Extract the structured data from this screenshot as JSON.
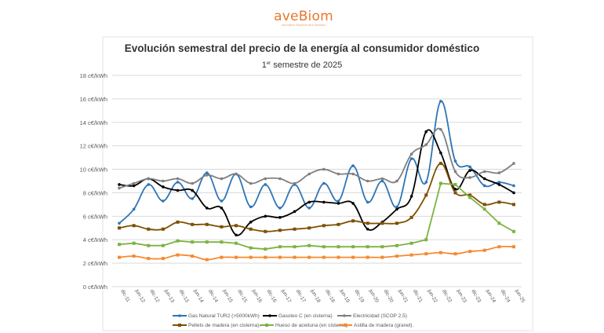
{
  "logo": {
    "brand": "aveBiom",
    "tagline": "Asociación Española de la Biomasa"
  },
  "chart_data": {
    "type": "line",
    "title": "Evolución semestral del precio de la energía al consumidor doméstico",
    "subtitle": {
      "prefix": "1",
      "sup": "er",
      "rest": " semestre de 2025"
    },
    "xlabel": "",
    "ylabel": "",
    "ylim": [
      0,
      18
    ],
    "yticks": [
      "0 c€/kWh",
      "2 c€/kWh",
      "4 c€/kWh",
      "6 c€/kWh",
      "8 c€/kWh",
      "10 c€/kWh",
      "12 c€/kWh",
      "14 c€/kWh",
      "16 c€/kWh",
      "18 c€/kWh"
    ],
    "grid": true,
    "legend_position": "bottom",
    "categories": [
      "dic-11",
      "jun-12",
      "dic-12",
      "jun-13",
      "dic-13",
      "jun-14",
      "dic-14",
      "jun-15",
      "dic-15",
      "jun-16",
      "dic-16",
      "jun-17",
      "dic-17",
      "jun-18",
      "dic-18",
      "jun-19",
      "dic-19",
      "jun-20",
      "dic-20",
      "jun-21",
      "dic-21",
      "jun-22",
      "dic-22",
      "jun-23",
      "dic-23",
      "jun-24",
      "dic-24",
      "jun-25"
    ],
    "series": [
      {
        "name": "Gas Natural TUR2 (>5000kWh)",
        "color": "#2e75b6",
        "marker": "diamond",
        "values": [
          5.4,
          6.6,
          8.7,
          7.3,
          8.9,
          7.5,
          9.7,
          7.3,
          9.6,
          6.8,
          8.7,
          6.7,
          8.7,
          6.7,
          8.8,
          7.3,
          10.3,
          7.2,
          9.0,
          6.8,
          10.9,
          8.9,
          15.8,
          10.7,
          10.2,
          8.6,
          8.9,
          8.6
        ]
      },
      {
        "name": "Gasoleo C (en cisterna)",
        "color": "#000000",
        "marker": "diamond",
        "values": [
          8.7,
          8.6,
          9.2,
          8.5,
          8.2,
          8.2,
          6.7,
          6.7,
          4.4,
          5.5,
          6.0,
          5.9,
          6.4,
          7.2,
          7.2,
          7.1,
          7.1,
          4.9,
          5.5,
          6.6,
          7.7,
          13.2,
          11.4,
          8.3,
          9.9,
          9.2,
          8.7,
          8.0
        ]
      },
      {
        "name": "Electricidad (SCOP 2,5)",
        "color": "#7f7f7f",
        "marker": "diamond",
        "values": [
          8.4,
          8.8,
          9.2,
          9.0,
          9.2,
          8.8,
          9.5,
          9.2,
          9.6,
          8.8,
          9.2,
          9.2,
          8.8,
          9.6,
          10.0,
          9.6,
          9.6,
          9.0,
          9.2,
          9.0,
          11.3,
          12.1,
          13.4,
          9.8,
          9.3,
          9.8,
          9.7,
          10.5
        ]
      },
      {
        "name": "Pellets de madera (en cisterna).",
        "color": "#7f4f00",
        "marker": "square",
        "values": [
          5.0,
          5.2,
          4.9,
          4.9,
          5.5,
          5.3,
          5.3,
          5.1,
          5.2,
          4.9,
          4.7,
          4.8,
          4.9,
          5.0,
          5.2,
          5.3,
          5.6,
          5.4,
          5.4,
          5.4,
          5.9,
          7.8,
          10.5,
          8.0,
          7.8,
          7.0,
          7.2,
          7.0
        ]
      },
      {
        "name": "Hueso de aceituna (en cisterna)",
        "color": "#7cb342",
        "marker": "square",
        "values": [
          3.6,
          3.7,
          3.5,
          3.5,
          3.9,
          3.8,
          3.8,
          3.8,
          3.7,
          3.3,
          3.2,
          3.4,
          3.4,
          3.5,
          3.4,
          3.4,
          3.4,
          3.4,
          3.4,
          3.5,
          3.7,
          4.0,
          8.8,
          8.7,
          7.6,
          6.6,
          5.4,
          4.7
        ]
      },
      {
        "name": "Astilla de madera (granel).",
        "color": "#f58a32",
        "marker": "square",
        "values": [
          2.5,
          2.6,
          2.4,
          2.4,
          2.7,
          2.6,
          2.3,
          2.5,
          2.5,
          2.5,
          2.5,
          2.5,
          2.5,
          2.5,
          2.5,
          2.5,
          2.5,
          2.5,
          2.5,
          2.6,
          2.7,
          2.8,
          2.9,
          2.8,
          3.0,
          3.1,
          3.4,
          3.4
        ]
      }
    ]
  }
}
